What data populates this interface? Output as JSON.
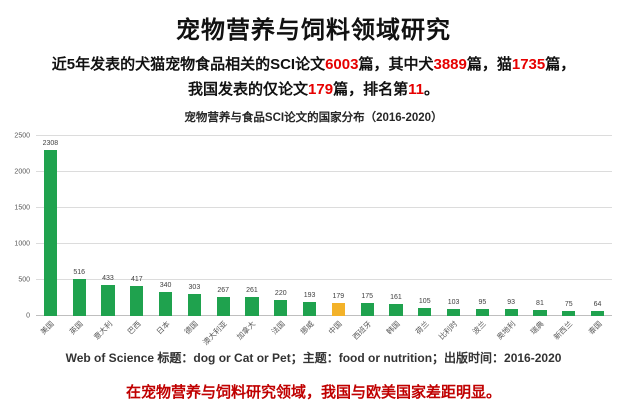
{
  "page": {
    "title": "宠物营养与饲料领域研究",
    "stats_line1": [
      {
        "text": "近5年发表的犬猫宠物食品相关的SCI论文",
        "highlight": false
      },
      {
        "text": "6003",
        "highlight": true
      },
      {
        "text": "篇，其中犬",
        "highlight": false
      },
      {
        "text": "3889",
        "highlight": true
      },
      {
        "text": "篇，猫",
        "highlight": false
      },
      {
        "text": "1735",
        "highlight": true
      },
      {
        "text": "篇，",
        "highlight": false
      }
    ],
    "stats_line2": [
      {
        "text": "我国发表的仅论文",
        "highlight": false
      },
      {
        "text": "179",
        "highlight": true
      },
      {
        "text": "篇，排名第",
        "highlight": false
      },
      {
        "text": "11",
        "highlight": true
      },
      {
        "text": "。",
        "highlight": false
      }
    ],
    "source_note": "Web of Science 标题：dog or Cat or Pet；主题：food or nutrition；出版时间：2016-2020",
    "footer": "在宠物营养与饲料研究领域，我国与欧美国家差距明显。"
  },
  "colors": {
    "highlight_text": "#e60000",
    "footer_text": "#c00000",
    "bar_green": "#1fa24e",
    "bar_orange": "#f3b229",
    "gridline": "#dcdcdc"
  },
  "chart_data": {
    "type": "bar",
    "title": "宠物营养与食品SCI论文的国家分布（2016-2020）",
    "categories": [
      "美国",
      "英国",
      "意大利",
      "巴西",
      "日本",
      "德国",
      "澳大利亚",
      "加拿大",
      "法国",
      "挪威",
      "中国",
      "西班牙",
      "韩国",
      "荷兰",
      "比利时",
      "波兰",
      "奥地利",
      "瑞典",
      "新西兰",
      "泰国"
    ],
    "values": [
      2308,
      516,
      433,
      417,
      340,
      303,
      267,
      261,
      220,
      193,
      179,
      175,
      161,
      105,
      103,
      95,
      93,
      81,
      75,
      64
    ],
    "highlight_index": 10,
    "highlight_category": "中国",
    "bar_color": "#1fa24e",
    "highlight_color": "#f3b229",
    "xlabel": "",
    "ylabel": "",
    "ylim": [
      0,
      2500
    ],
    "ytick_step": 500,
    "grid": true,
    "legend_position": "none",
    "value_labels": true
  }
}
